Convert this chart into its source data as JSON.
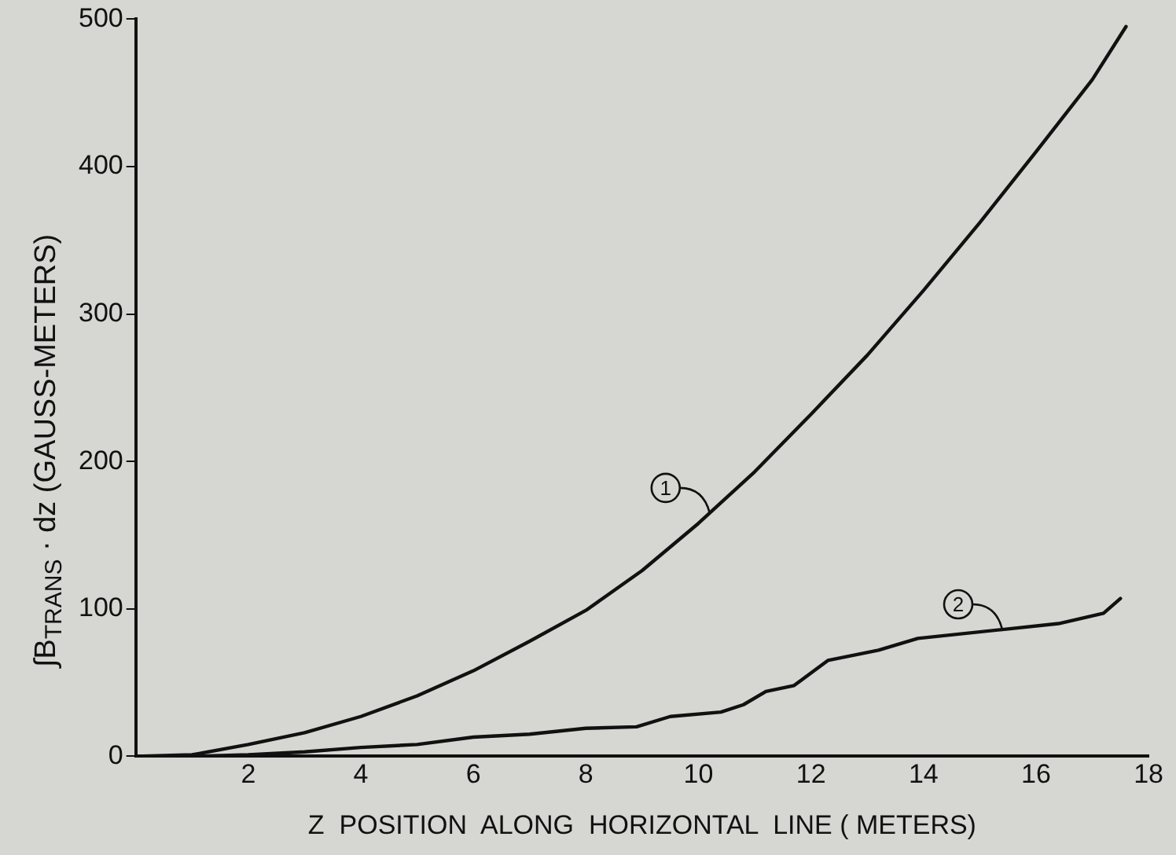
{
  "chart_data": {
    "type": "line",
    "xlabel": "Z  POSITION  ALONG  HORIZONTAL  LINE ( METERS)",
    "ylabel": "∫B$_{TRANS}$ · dz (GAUSS-METERS)",
    "xlim": [
      0,
      18
    ],
    "xticks": [
      2,
      4,
      6,
      8,
      10,
      12,
      14,
      16,
      18
    ],
    "ylim": [
      0,
      500
    ],
    "yticks": [
      0,
      100,
      200,
      300,
      400,
      500
    ],
    "grid": false,
    "legend": false,
    "marker": "none",
    "line_style": "solid",
    "series": [
      {
        "color": "#111111",
        "x": [
          0,
          1,
          2,
          3,
          4,
          5,
          6,
          7,
          8,
          9,
          10,
          11,
          12,
          13,
          14,
          15,
          16,
          17,
          17.6
        ],
        "values": [
          0,
          1,
          8,
          16,
          27,
          41,
          58,
          78,
          99,
          126,
          158,
          193,
          232,
          272,
          316,
          362,
          410,
          459,
          495
        ]
      },
      {
        "color": "#111111",
        "x": [
          0,
          1,
          2,
          3,
          4,
          5,
          6,
          7,
          8,
          8.9,
          9.5,
          10.4,
          10.8,
          11.2,
          11.7,
          12.3,
          13.2,
          13.9,
          15.4,
          16.4,
          17.2,
          17.5
        ],
        "values": [
          0,
          0,
          1,
          3,
          6,
          8,
          13,
          15,
          19,
          20,
          27,
          30,
          35,
          44,
          48,
          65,
          72,
          80,
          86,
          90,
          97,
          107
        ]
      }
    ],
    "annotations": [
      {
        "text": "1",
        "x": 10.2,
        "y": 165
      },
      {
        "text": "2",
        "x": 15.4,
        "y": 86
      }
    ]
  }
}
